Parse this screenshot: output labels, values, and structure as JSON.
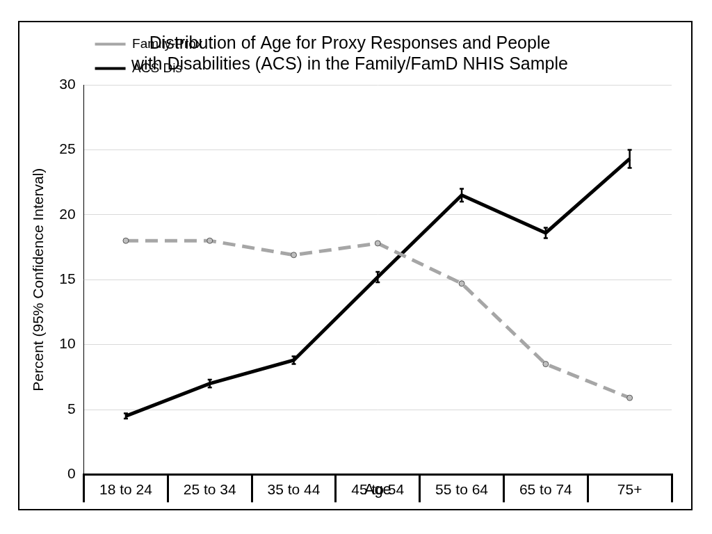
{
  "chart_data": {
    "type": "line",
    "title": [
      "Distribution of Age for Proxy Responses and People",
      "with Disabilities (ACS) in the Family/FamD NHIS Sample"
    ],
    "x_label": "Age",
    "y_label": "Percent (95% Confidence Interval)",
    "categories": [
      "18 to 24",
      "25 to 34",
      "35 to 44",
      "45 to 54",
      "55 to 64",
      "65 to 74",
      "75+"
    ],
    "series": [
      {
        "name": "Family-Prox",
        "color": "#a6a6a6",
        "line_style": "dashed",
        "marker": "circle",
        "values": [
          18.0,
          18.0,
          16.9,
          17.8,
          14.7,
          8.5,
          5.9
        ]
      },
      {
        "name": "ACS Dis",
        "color": "#000000",
        "line_style": "solid",
        "marker": "none",
        "values": [
          4.5,
          7.0,
          8.8,
          15.2,
          21.5,
          18.6,
          24.3
        ],
        "errors": [
          0.2,
          0.3,
          0.3,
          0.4,
          0.5,
          0.4,
          0.7
        ]
      }
    ],
    "ylim": [
      0,
      30
    ],
    "yticks": [
      0,
      5,
      10,
      15,
      20,
      25,
      30
    ],
    "grid": true,
    "legend": "upper left"
  }
}
